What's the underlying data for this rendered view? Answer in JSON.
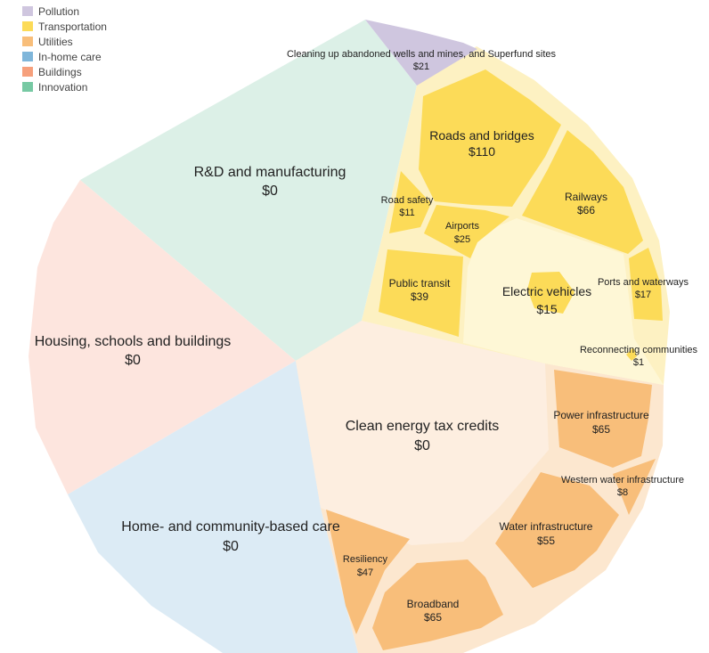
{
  "colors": {
    "Pollution": "#cfc6df",
    "Transportation": "#fcdb58",
    "Utilities": "#f8be7a",
    "In-home care": "#7fb6da",
    "Buildings": "#f6a07c",
    "Innovation": "#77c9a3",
    "innovation_bg": "#dcf0e7",
    "buildings_bg": "#fde5de",
    "care_bg": "#dcebf5",
    "utilities_bg": "#fdeee0",
    "transport_bg": "#fef7d6",
    "transport_gap": "#fdf1c2",
    "utilities_gap": "#fce7cf"
  },
  "chart_data": {
    "type": "voronoi-treemap",
    "legend": [
      "Pollution",
      "Transportation",
      "Utilities",
      "In-home care",
      "Buildings",
      "Innovation"
    ],
    "groups": [
      {
        "name": "Innovation",
        "label": "R&D and manufacturing",
        "value_label": "$0",
        "value": 0
      },
      {
        "name": "Buildings",
        "label": "Housing, schools and buildings",
        "value_label": "$0",
        "value": 0
      },
      {
        "name": "In-home care",
        "label": "Home- and community-based care",
        "value_label": "$0",
        "value": 0
      },
      {
        "name": "Utilities",
        "label": "Clean energy tax credits",
        "value_label": "$0",
        "value": 0
      }
    ],
    "items": [
      {
        "id": "cleanup",
        "category": "Pollution",
        "label": "Cleaning up abandoned wells and mines, and Superfund sites",
        "value_label": "$21",
        "value": 21
      },
      {
        "id": "roads",
        "category": "Transportation",
        "label": "Roads and bridges",
        "value_label": "$110",
        "value": 110
      },
      {
        "id": "railways",
        "category": "Transportation",
        "label": "Railways",
        "value_label": "$66",
        "value": 66
      },
      {
        "id": "road-safety",
        "category": "Transportation",
        "label": "Road safety",
        "value_label": "$11",
        "value": 11
      },
      {
        "id": "airports",
        "category": "Transportation",
        "label": "Airports",
        "value_label": "$25",
        "value": 25
      },
      {
        "id": "transit",
        "category": "Transportation",
        "label": "Public transit",
        "value_label": "$39",
        "value": 39
      },
      {
        "id": "ev",
        "category": "Transportation",
        "label": "Electric vehicles",
        "value_label": "$15",
        "value": 15
      },
      {
        "id": "ports",
        "category": "Transportation",
        "label": "Ports and waterways",
        "value_label": "$17",
        "value": 17
      },
      {
        "id": "reconnect",
        "category": "Transportation",
        "label": "Reconnecting communities",
        "value_label": "$1",
        "value": 1
      },
      {
        "id": "power",
        "category": "Utilities",
        "label": "Power infrastructure",
        "value_label": "$65",
        "value": 65
      },
      {
        "id": "western-water",
        "category": "Utilities",
        "label": "Western water infrastructure",
        "value_label": "$8",
        "value": 8
      },
      {
        "id": "water",
        "category": "Utilities",
        "label": "Water infrastructure",
        "value_label": "$55",
        "value": 55
      },
      {
        "id": "resiliency",
        "category": "Utilities",
        "label": "Resiliency",
        "value_label": "$47",
        "value": 47
      },
      {
        "id": "broadband",
        "category": "Utilities",
        "label": "Broadband",
        "value_label": "$65",
        "value": 65
      }
    ]
  }
}
